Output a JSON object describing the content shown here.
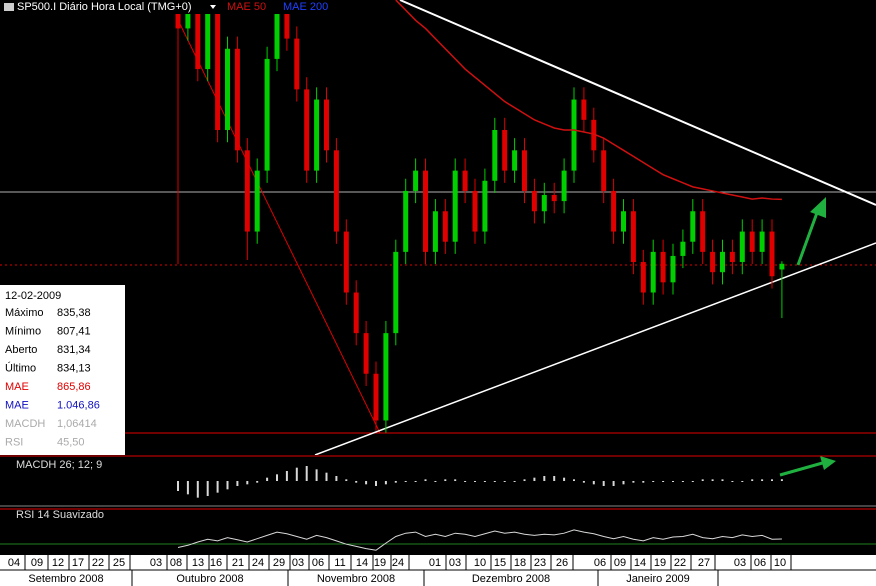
{
  "header": {
    "title": "SP500.I Diário Hora Local (TMG+0)"
  },
  "info": {
    "date": "12-02-2009",
    "rows": [
      {
        "label": "Máximo",
        "value": "835,38"
      },
      {
        "label": "Mínimo",
        "value": "807,41"
      },
      {
        "label": "Aberto",
        "value": "831,34"
      },
      {
        "label": "Último",
        "value": "834,13"
      },
      {
        "label": "MAE",
        "value": "865,86"
      },
      {
        "label": "MAE",
        "value": "1.046,86"
      },
      {
        "label": "MACDH",
        "value": "1,06414"
      },
      {
        "label": "RSI",
        "value": "45,50"
      }
    ]
  },
  "chart_data": [
    {
      "type": "candlestick",
      "up_color": "#00d000",
      "down_color": "#e00000",
      "ylim": [
        740,
        964
      ],
      "open": [
        990,
        950,
        975,
        930,
        960,
        900,
        940,
        890,
        850,
        880,
        935,
        960,
        945,
        920,
        880,
        915,
        890,
        850,
        820,
        800,
        780,
        757,
        800,
        840,
        870,
        880,
        840,
        860,
        845,
        880,
        870,
        850,
        875,
        900,
        880,
        890,
        870,
        860,
        868,
        865,
        880,
        915,
        905,
        890,
        870,
        850,
        860,
        835,
        820,
        840,
        825,
        838,
        845,
        860,
        840,
        830,
        840,
        835,
        850,
        840,
        850,
        831.34
      ],
      "high": [
        996,
        981,
        981,
        966,
        966,
        946,
        946,
        896,
        886,
        941,
        966,
        966,
        951,
        926,
        921,
        921,
        896,
        856,
        826,
        806,
        786,
        806,
        846,
        876,
        886,
        886,
        866,
        866,
        886,
        886,
        876,
        881,
        906,
        906,
        896,
        896,
        876,
        874,
        874,
        886,
        921,
        921,
        911,
        896,
        876,
        866,
        866,
        841,
        846,
        846,
        844,
        851,
        866,
        866,
        846,
        846,
        846,
        856,
        856,
        856,
        856,
        835.38
      ],
      "low": [
        834,
        944,
        924,
        924,
        894,
        894,
        884,
        836,
        844,
        874,
        929,
        939,
        914,
        874,
        874,
        884,
        844,
        814,
        794,
        774,
        752,
        751,
        794,
        834,
        864,
        834,
        834,
        839,
        839,
        864,
        844,
        844,
        869,
        874,
        874,
        864,
        854,
        854,
        859,
        859,
        874,
        899,
        884,
        864,
        844,
        844,
        829,
        814,
        814,
        819,
        819,
        832,
        839,
        834,
        824,
        824,
        829,
        829,
        834,
        834,
        822,
        807.41
      ],
      "close": [
        950,
        975,
        930,
        960,
        900,
        940,
        890,
        850,
        880,
        935,
        960,
        945,
        920,
        880,
        915,
        890,
        850,
        820,
        800,
        780,
        757,
        800,
        840,
        870,
        880,
        840,
        860,
        845,
        880,
        870,
        850,
        875,
        900,
        880,
        890,
        870,
        860,
        868,
        865,
        880,
        915,
        905,
        890,
        870,
        850,
        860,
        835,
        820,
        840,
        825,
        838,
        845,
        860,
        840,
        830,
        840,
        835,
        850,
        840,
        850,
        828,
        834.13
      ],
      "series": [
        {
          "name": "MAE 50",
          "color": "#d01010",
          "values": [
            null,
            null,
            null,
            null,
            null,
            null,
            null,
            null,
            null,
            null,
            null,
            null,
            null,
            null,
            null,
            null,
            null,
            null,
            null,
            null,
            null,
            null,
            964,
            959,
            954,
            950,
            945,
            940,
            935,
            930,
            926,
            922,
            918,
            914,
            911,
            908,
            905,
            903,
            901,
            900,
            900,
            899,
            898,
            896,
            893,
            890,
            887,
            884,
            881,
            878,
            876,
            874,
            872,
            871,
            870,
            869,
            868,
            867,
            866,
            866.5,
            866,
            865.86
          ]
        },
        {
          "name": "MAE 200",
          "color": "#2040ff"
        }
      ]
    },
    {
      "type": "bar",
      "title": "MACDH 26; 12; 9",
      "color": "#d8d8d8",
      "ylim": [
        -12,
        12
      ],
      "values": [
        -6,
        -8,
        -10,
        -9,
        -7,
        -5,
        -3,
        -2,
        -1,
        2,
        4,
        6,
        8,
        9,
        7,
        5,
        3,
        1,
        -1,
        -2,
        -3,
        -2,
        -1,
        0,
        0,
        1,
        0,
        1,
        1,
        0,
        0,
        0,
        0,
        0,
        0,
        1,
        2,
        3,
        3,
        2,
        1,
        -1,
        -2,
        -3,
        -3,
        -2,
        -1,
        -1,
        0,
        0,
        0,
        0,
        0,
        1,
        1,
        1,
        0,
        0,
        1,
        1,
        1,
        1.06414
      ]
    },
    {
      "type": "line",
      "title": "RSI 14 Suavizado",
      "color": "#d8d8d8",
      "ylim": [
        20,
        80
      ],
      "values": [
        30,
        34,
        40,
        45,
        42,
        48,
        44,
        40,
        46,
        52,
        58,
        55,
        50,
        45,
        52,
        48,
        42,
        36,
        32,
        28,
        25,
        38,
        50,
        56,
        58,
        50,
        54,
        50,
        56,
        54,
        50,
        55,
        60,
        56,
        58,
        54,
        52,
        54,
        53,
        56,
        62,
        58,
        55,
        50,
        46,
        50,
        45,
        42,
        48,
        45,
        49,
        50,
        54,
        48,
        46,
        50,
        48,
        53,
        50,
        52,
        45,
        45.5
      ]
    }
  ],
  "dates": {
    "days": [
      "04",
      "09",
      "12",
      "17",
      "22",
      "25",
      "03",
      "08",
      "13",
      "16",
      "21",
      "24",
      "29",
      "03",
      "06",
      "11",
      "14",
      "19",
      "24",
      "01",
      "03",
      "10",
      "15",
      "18",
      "23",
      "26",
      "06",
      "09",
      "14",
      "19",
      "22",
      "27",
      "03",
      "06",
      "10"
    ],
    "months": [
      "Setembro 2008",
      "Outubro 2008",
      "Novembro 2008",
      "Dezembro 2008",
      "Janeiro 2009"
    ]
  }
}
